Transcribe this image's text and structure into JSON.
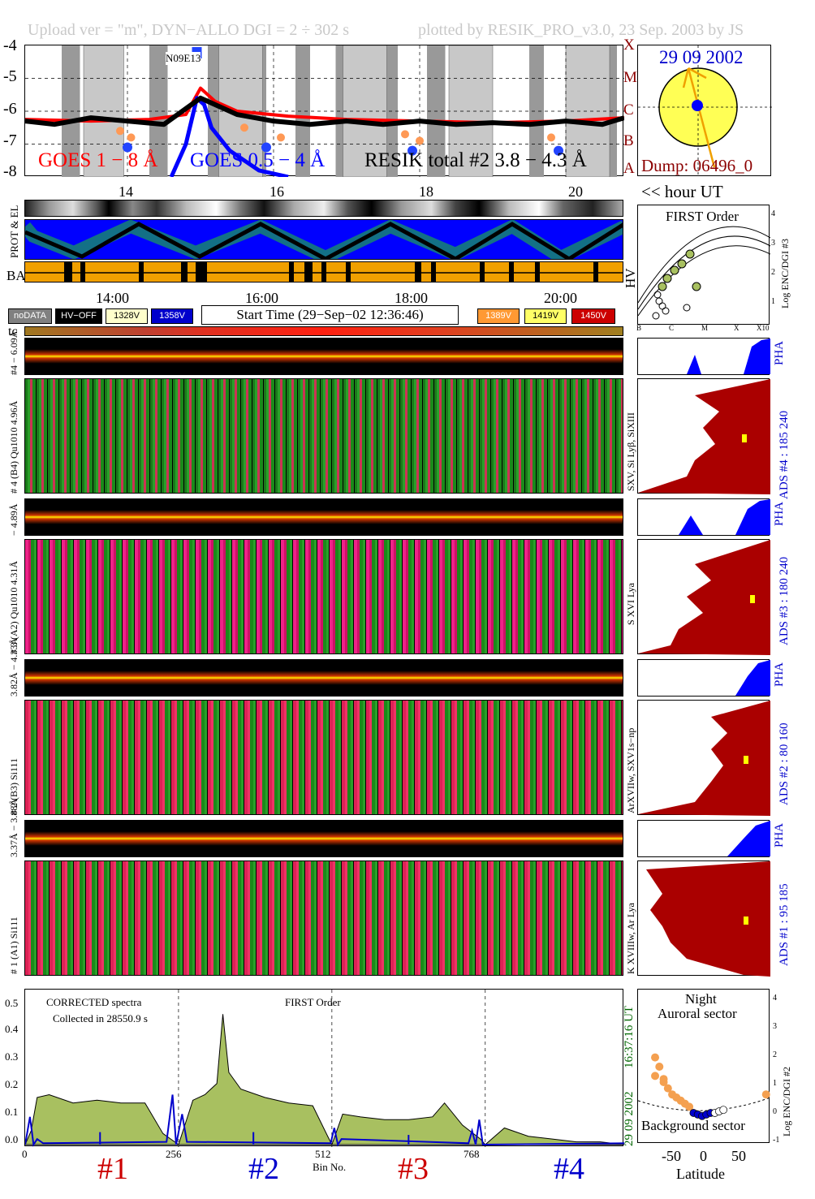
{
  "header": {
    "left": "Upload ver = \"m\", DYN−ALLO DGI =   2 ÷ 302 s",
    "right": "plotted by RESIK_PRO_v3.0, 23 Sep. 2003 by JS"
  },
  "goes_panel": {
    "y_ticks": [
      "-4",
      "-5",
      "-6",
      "-7",
      "-8"
    ],
    "class_letters": [
      "X",
      "M",
      "C",
      "B",
      "A"
    ],
    "noaa_label": "N09E13",
    "legend_goes1": "GOES 1 − 8 Å",
    "legend_goes05": "GOES 0.5 − 4 Å",
    "legend_resik": "RESIK total #2  3.8 − 4.3 Å",
    "x_ticks": [
      "14",
      "16",
      "18",
      "20"
    ],
    "hour_label": "<< hour UT",
    "colors": {
      "goes1": "#ff0000",
      "goes05": "#0000ff",
      "resik": "#000000",
      "ba_bar": "#f0a000"
    }
  },
  "sun_panel": {
    "date": "29 09 2002",
    "dump": "Dump: 06496_0",
    "colors": {
      "disk": "#ffff55",
      "spot": "#0000ff",
      "text_date": "#0000cc",
      "text_dump": "#8b0000"
    }
  },
  "attitude_panel": {
    "left_label_prot": "PROT & EL",
    "left_label_ba": "BA",
    "right_label_hv": "HV"
  },
  "time_axis": {
    "ticks": [
      "14:00",
      "16:00",
      "18:00",
      "20:00"
    ],
    "start_time": "Start Time (29−Sep−02 12:36:46)"
  },
  "voltage_legend": [
    {
      "label": "noDATA",
      "bg": "#808080",
      "fg": "#ffffff"
    },
    {
      "label": "HV−OFF",
      "bg": "#000000",
      "fg": "#ffffff"
    },
    {
      "label": "1328V",
      "bg": "#ffffcc",
      "fg": "#000000"
    },
    {
      "label": "1358V",
      "bg": "#0000cc",
      "fg": "#ffffff"
    },
    {
      "label": "1389V",
      "bg": "#ff9933",
      "fg": "#ffffff"
    },
    {
      "label": "1419V",
      "bg": "#ffff66",
      "fg": "#000000"
    },
    {
      "label": "1450V",
      "bg": "#cc0000",
      "fg": "#ffffff"
    }
  ],
  "tc_label": "tc",
  "first_order_panel": {
    "title": "FIRST Order",
    "y_label": "Log ENC/DGI #3",
    "y_ticks": [
      "4",
      "3",
      "2",
      "1",
      "0"
    ],
    "x_ticks": [
      "B",
      "C",
      "M",
      "X",
      "X10"
    ]
  },
  "channels": [
    {
      "id": 4,
      "pha_label": "#4 − 6.09Å",
      "spec_label": "# 4 (B4) Qu1010 4.96Å",
      "lines": "SXV, Si Lyβ, SiXIII",
      "pha_title": "PHA",
      "ads_label": "ADS #4 :   185 240"
    },
    {
      "id": 3,
      "pha_label": "− 4.89Å",
      "spec_label": "# 3 (A2) Qu1010 4.31Å",
      "lines": "S XVI Lya",
      "pha_title": "PHA",
      "ads_label": "ADS #3 :   180 240"
    },
    {
      "id": 2,
      "pha_label": "3.82Å − 4.33Å",
      "spec_label": "# 2 (B3) Si111",
      "lines": "ArXVIIw, SXV1s−np",
      "pha_title": "PHA",
      "ads_label": "ADS #2 :    80 160"
    },
    {
      "id": 1,
      "pha_label": "3.37Å − 3.88Å",
      "spec_label": "# 1 (A1) Si111",
      "lines": "K XVIIIw, Ar Lya",
      "pha_title": "PHA",
      "ads_label": "ADS #1 :    95 185"
    }
  ],
  "spectrum_panel": {
    "title": "CORRECTED spectra",
    "collected": "Collected in 28550.9 s",
    "order": "FIRST Order",
    "y_ticks": [
      "0.5",
      "0.4",
      "0.3",
      "0.2",
      "0.1",
      "0.0"
    ],
    "x_ticks": [
      "0",
      "256",
      "512",
      "768"
    ],
    "x_label": "Bin No.",
    "channel_labels": [
      "#1",
      "#2",
      "#3",
      "#4"
    ],
    "channel_colors": [
      "#cc0000",
      "#0000cc",
      "#cc0000",
      "#0000cc"
    ],
    "date_label": "29 09 2002",
    "time_label": "16:37:16 UT",
    "colors": {
      "fill": "#a8c060",
      "blue": "#0000cc"
    }
  },
  "latitude_panel": {
    "night": "Night",
    "auroral": "Auroral sector",
    "background": "Background sector",
    "y_label": "Log ENC/DGI #2",
    "y_ticks": [
      "4",
      "3",
      "2",
      "1",
      "0",
      "-1"
    ],
    "x_ticks": [
      "-50",
      "0",
      "50"
    ],
    "x_label": "Latitude"
  },
  "chart_data": [
    {
      "type": "line",
      "title": "",
      "xlabel": "hour UT",
      "ylabel": "",
      "xlim": [
        12.6,
        20.8
      ],
      "ylim": [
        -8,
        -4
      ],
      "series": [
        {
          "name": "GOES 1 − 8 Å",
          "x": [
            12.6,
            13.5,
            14.3,
            14.8,
            15.0,
            15.2,
            15.5,
            16.2,
            17.0,
            18.0,
            19.0,
            20.0,
            20.8
          ],
          "values": [
            -6.25,
            -6.3,
            -6.25,
            -6.1,
            -5.3,
            -5.7,
            -6.0,
            -6.15,
            -6.25,
            -6.3,
            -6.35,
            -6.3,
            -6.2
          ]
        },
        {
          "name": "GOES 0.5 − 4 Å",
          "x": [
            14.6,
            14.8,
            14.95,
            15.05,
            15.15,
            15.4,
            15.8,
            16.2
          ],
          "values": [
            -8.0,
            -7.0,
            -5.6,
            -5.8,
            -6.5,
            -7.2,
            -7.8,
            -8.0
          ]
        },
        {
          "name": "RESIK total #2  3.8 − 4.3 Å",
          "x": [
            12.6,
            13.0,
            13.5,
            14.0,
            14.5,
            15.0,
            15.5,
            16.0,
            16.5,
            17.0,
            17.5,
            18.0,
            18.5,
            19.0,
            19.5,
            20.0,
            20.5,
            20.8
          ],
          "values": [
            -6.3,
            -6.4,
            -6.2,
            -6.3,
            -6.4,
            -5.6,
            -6.1,
            -6.3,
            -6.4,
            -6.3,
            -6.4,
            -6.3,
            -6.4,
            -6.35,
            -6.4,
            -6.3,
            -6.4,
            -6.2
          ]
        }
      ]
    },
    {
      "type": "area",
      "title": "CORRECTED spectra",
      "xlabel": "Bin No.",
      "ylabel": "",
      "xlim": [
        0,
        1000
      ],
      "ylim": [
        0,
        0.55
      ],
      "series": [
        {
          "name": "corrected",
          "x": [
            0,
            10,
            20,
            40,
            80,
            120,
            160,
            200,
            230,
            256,
            280,
            300,
            320,
            330,
            340,
            360,
            400,
            440,
            480,
            505,
            512,
            530,
            560,
            600,
            640,
            680,
            700,
            730,
            760,
            768,
            800,
            840,
            880,
            920,
            960,
            1000
          ],
          "values": [
            0,
            0.05,
            0.17,
            0.18,
            0.15,
            0.16,
            0.15,
            0.15,
            0.04,
            0.0,
            0.16,
            0.18,
            0.22,
            0.47,
            0.26,
            0.2,
            0.17,
            0.15,
            0.14,
            0.03,
            0.0,
            0.11,
            0.1,
            0.09,
            0.09,
            0.1,
            0.15,
            0.07,
            0.02,
            0.0,
            0.06,
            0.03,
            0.02,
            0.01,
            0.01,
            0.0
          ]
        },
        {
          "name": "blue",
          "x": [
            0,
            8,
            14,
            20,
            30,
            236,
            246,
            252,
            262,
            270,
            510,
            516,
            522,
            528,
            740,
            746,
            752,
            758,
            764,
            1000
          ],
          "values": [
            0,
            0.1,
            0.0,
            0.02,
            0.005,
            0.01,
            0.18,
            0.0,
            0.11,
            0.01,
            0.005,
            0.06,
            0.0,
            0.02,
            0.005,
            0.05,
            0.0,
            0.09,
            0.0,
            0.005
          ]
        }
      ]
    },
    {
      "type": "scatter",
      "title": "FIRST Order",
      "xlabel": "",
      "ylabel": "Log ENC/DGI #3",
      "series": [
        {
          "name": "points",
          "values": [
            0.4,
            0.6,
            0.8,
            1.0,
            1.2,
            1.5,
            1.8,
            0.5,
            0.7
          ]
        }
      ]
    },
    {
      "type": "scatter",
      "title": "Night",
      "xlabel": "Latitude",
      "ylabel": "Log ENC/DGI #2",
      "xlim": [
        -75,
        80
      ],
      "ylim": [
        -1,
        4
      ],
      "series": [
        {
          "name": "auroral",
          "x": [
            -55,
            -50,
            -45,
            -40,
            -35,
            -30,
            -25,
            -20,
            -15,
            -55,
            -45,
            75
          ],
          "values": [
            1.8,
            1.5,
            1.0,
            0.8,
            0.6,
            0.5,
            0.4,
            0.3,
            0.2,
            1.2,
            1.1,
            0.6
          ]
        },
        {
          "name": "background",
          "x": [
            -10,
            -5,
            0,
            5,
            10,
            15,
            20,
            25
          ],
          "values": [
            0.0,
            -0.05,
            -0.1,
            -0.05,
            0.0,
            0.0,
            0.05,
            0.1
          ]
        }
      ]
    }
  ]
}
